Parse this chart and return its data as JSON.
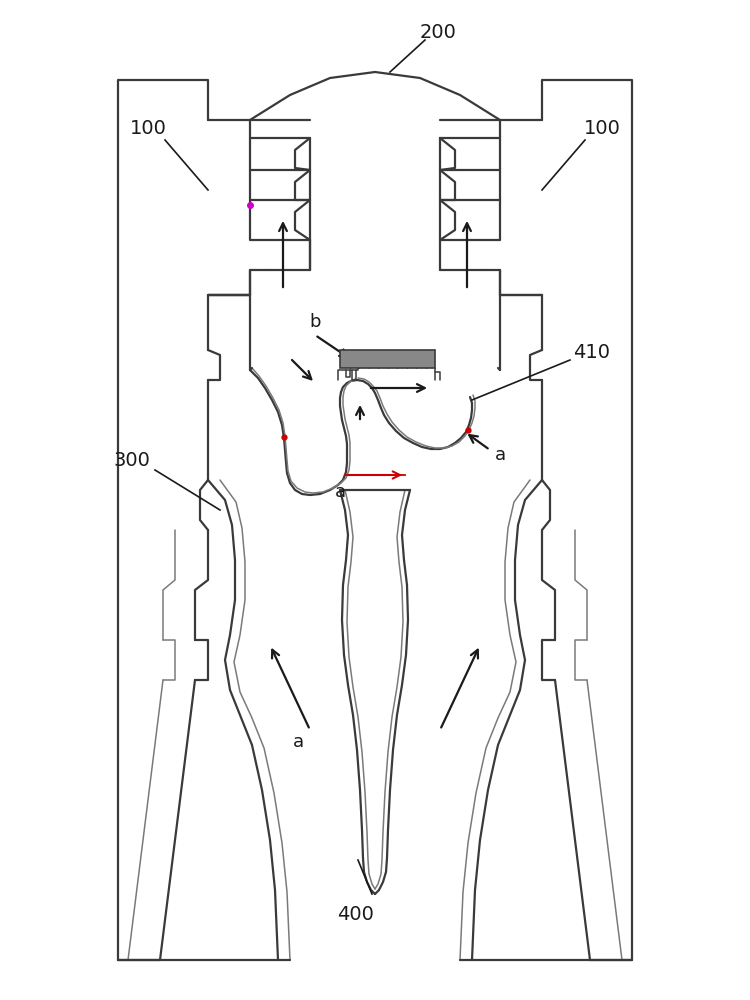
{
  "bg_color": "#ffffff",
  "lc": "#3a3a3a",
  "lc2": "#7a7a7a",
  "red_color": "#cc0000",
  "magenta_color": "#cc00cc",
  "fig_width": 7.5,
  "fig_height": 10.0,
  "labels": {
    "100_left": "100",
    "100_right": "100",
    "200": "200",
    "300": "300",
    "400": "400",
    "410": "410",
    "a1": "a",
    "a2": "a",
    "a3": "a",
    "b": "b"
  },
  "fontsize": 14
}
